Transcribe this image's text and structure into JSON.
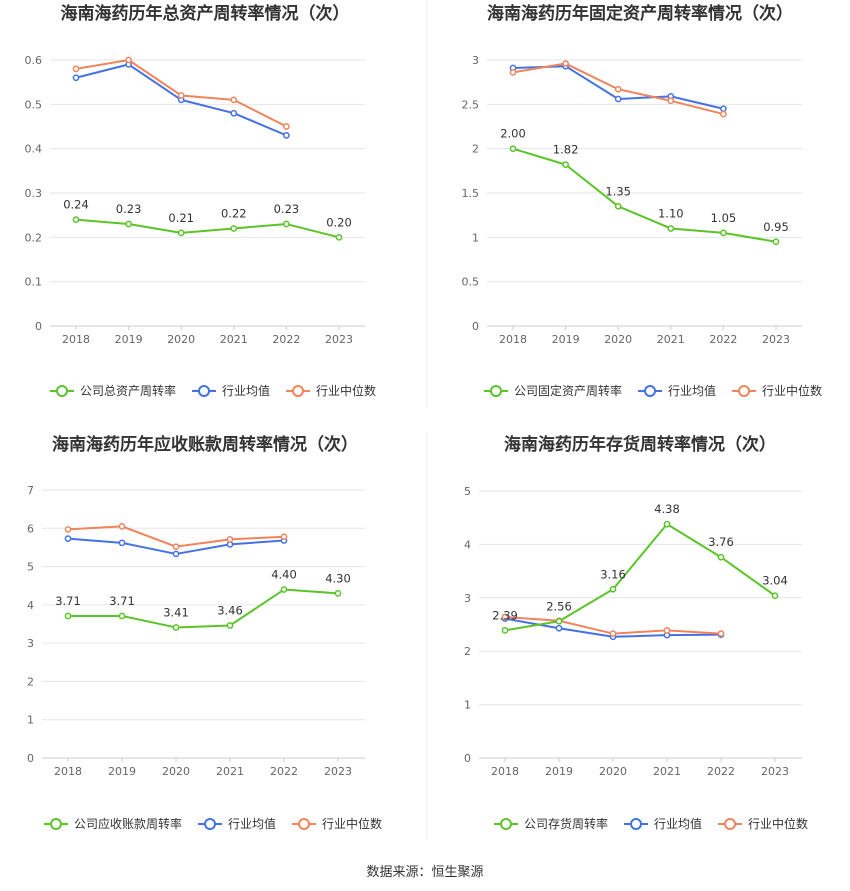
{
  "colors": {
    "company": "#5ac429",
    "average": "#4472e6",
    "median": "#f0845c",
    "grid": "#e6e6e6",
    "axis": "#cccccc",
    "divider": "#eeeeee"
  },
  "source": "数据来源：恒生聚源",
  "chart_data": [
    {
      "type": "line",
      "title": "海南海药历年总资产周转率情况（次）",
      "categories": [
        "2018",
        "2019",
        "2020",
        "2021",
        "2022",
        "2023"
      ],
      "ylim": [
        0,
        0.6
      ],
      "yticks": [
        "0",
        "0.1",
        "0.2",
        "0.3",
        "0.4",
        "0.5",
        "0.6"
      ],
      "grid": true,
      "legend_position": "bottom",
      "series": [
        {
          "name": "公司总资产周转率",
          "role": "company",
          "values": [
            0.24,
            0.23,
            0.21,
            0.22,
            0.23,
            0.2
          ],
          "labels": [
            "0.24",
            "0.23",
            "0.21",
            "0.22",
            "0.23",
            "0.20"
          ]
        },
        {
          "name": "行业均值",
          "role": "average",
          "values": [
            0.56,
            0.59,
            0.51,
            0.48,
            0.43,
            null
          ]
        },
        {
          "name": "行业中位数",
          "role": "median",
          "values": [
            0.58,
            0.6,
            0.52,
            0.51,
            0.45,
            null
          ]
        }
      ]
    },
    {
      "type": "line",
      "title": "海南海药历年固定资产周转率情况（次）",
      "categories": [
        "2018",
        "2019",
        "2020",
        "2021",
        "2022",
        "2023"
      ],
      "ylim": [
        0,
        3
      ],
      "yticks": [
        "0",
        "0.5",
        "1",
        "1.5",
        "2",
        "2.5",
        "3"
      ],
      "grid": true,
      "legend_position": "bottom",
      "series": [
        {
          "name": "公司固定资产周转率",
          "role": "company",
          "values": [
            2.0,
            1.82,
            1.35,
            1.1,
            1.05,
            0.95
          ],
          "labels": [
            "2.00",
            "1.82",
            "1.35",
            "1.10",
            "1.05",
            "0.95"
          ]
        },
        {
          "name": "行业均值",
          "role": "average",
          "values": [
            2.91,
            2.93,
            2.56,
            2.59,
            2.45,
            null
          ]
        },
        {
          "name": "行业中位数",
          "role": "median",
          "values": [
            2.86,
            2.96,
            2.67,
            2.54,
            2.39,
            null
          ]
        }
      ]
    },
    {
      "type": "line",
      "title": "海南海药历年应收账款周转率情况（次）",
      "categories": [
        "2018",
        "2019",
        "2020",
        "2021",
        "2022",
        "2023"
      ],
      "ylim": [
        0,
        7
      ],
      "yticks": [
        "0",
        "1",
        "2",
        "3",
        "4",
        "5",
        "6",
        "7"
      ],
      "grid": true,
      "legend_position": "bottom",
      "series": [
        {
          "name": "公司应收账款周转率",
          "role": "company",
          "values": [
            3.71,
            3.71,
            3.41,
            3.46,
            4.4,
            4.3
          ],
          "labels": [
            "3.71",
            "3.71",
            "3.41",
            "3.46",
            "4.40",
            "4.30"
          ]
        },
        {
          "name": "行业均值",
          "role": "average",
          "values": [
            5.73,
            5.62,
            5.33,
            5.58,
            5.68,
            null
          ]
        },
        {
          "name": "行业中位数",
          "role": "median",
          "values": [
            5.97,
            6.05,
            5.52,
            5.71,
            5.78,
            null
          ]
        }
      ]
    },
    {
      "type": "line",
      "title": "海南海药历年存货周转率情况（次）",
      "categories": [
        "2018",
        "2019",
        "2020",
        "2021",
        "2022",
        "2023"
      ],
      "ylim": [
        0,
        5
      ],
      "yticks": [
        "0",
        "1",
        "2",
        "3",
        "4",
        "5"
      ],
      "grid": true,
      "legend_position": "bottom",
      "series": [
        {
          "name": "公司存货周转率",
          "role": "company",
          "values": [
            2.39,
            2.56,
            3.16,
            4.38,
            3.76,
            3.04
          ],
          "labels": [
            "2.39",
            "2.56",
            "3.16",
            "4.38",
            "3.76",
            "3.04"
          ]
        },
        {
          "name": "行业均值",
          "role": "average",
          "values": [
            2.61,
            2.43,
            2.27,
            2.3,
            2.31,
            null
          ]
        },
        {
          "name": "行业中位数",
          "role": "median",
          "values": [
            2.64,
            2.57,
            2.33,
            2.39,
            2.33,
            null
          ]
        }
      ]
    }
  ]
}
